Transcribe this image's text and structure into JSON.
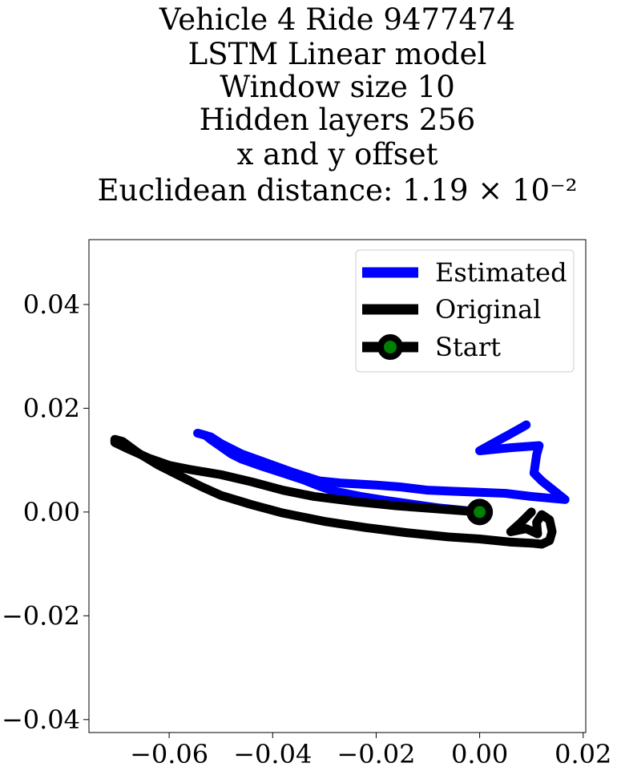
{
  "chart_data": {
    "type": "line",
    "title_lines": [
      "Vehicle 4 Ride 9477474",
      "LSTM Linear model",
      "Window size 10",
      "Hidden layers 256",
      "x and y offset",
      "Euclidean distance: 1.19 × 10⁻²"
    ],
    "xlim": [
      -0.0755,
      0.0205
    ],
    "ylim": [
      -0.0425,
      0.0525
    ],
    "x_ticks": [
      -0.06,
      -0.04,
      -0.02,
      0.0,
      0.02
    ],
    "x_tick_labels": [
      "−0.06",
      "−0.04",
      "−0.02",
      "0.00",
      "0.02"
    ],
    "y_ticks": [
      0.04,
      0.02,
      0.0,
      -0.02,
      -0.04
    ],
    "y_tick_labels": [
      "0.04",
      "0.02",
      "0.00",
      "−0.02",
      "−0.04"
    ],
    "legend_position": "top-right",
    "series": [
      {
        "name": "Estimated",
        "color": "#0000ff",
        "points": [
          [
            0.0,
            0.0
          ],
          [
            -0.004,
            0.0004
          ],
          [
            -0.008,
            0.0008
          ],
          [
            -0.013,
            0.0015
          ],
          [
            -0.018,
            0.0022
          ],
          [
            -0.023,
            0.003
          ],
          [
            -0.028,
            0.004
          ],
          [
            -0.031,
            0.005
          ],
          [
            -0.034,
            0.0062
          ],
          [
            -0.038,
            0.0075
          ],
          [
            -0.042,
            0.0088
          ],
          [
            -0.046,
            0.0102
          ],
          [
            -0.048,
            0.0112
          ],
          [
            -0.05,
            0.0126
          ],
          [
            -0.052,
            0.014
          ],
          [
            -0.053,
            0.0148
          ],
          [
            -0.0545,
            0.0152
          ],
          [
            -0.052,
            0.0145
          ],
          [
            -0.05,
            0.0132
          ],
          [
            -0.046,
            0.0112
          ],
          [
            -0.041,
            0.0094
          ],
          [
            -0.036,
            0.0076
          ],
          [
            -0.031,
            0.006
          ],
          [
            -0.027,
            0.0056
          ],
          [
            -0.02,
            0.0052
          ],
          [
            -0.015,
            0.0048
          ],
          [
            -0.01,
            0.0042
          ],
          [
            -0.005,
            0.004
          ],
          [
            0.0,
            0.0038
          ],
          [
            0.005,
            0.0036
          ],
          [
            0.01,
            0.003
          ],
          [
            0.0165,
            0.0024
          ],
          [
            0.012,
            0.006
          ],
          [
            0.0105,
            0.0075
          ],
          [
            0.011,
            0.011
          ],
          [
            0.0115,
            0.0128
          ],
          [
            0.006,
            0.0124
          ],
          [
            0.0,
            0.0118
          ],
          [
            0.004,
            0.014
          ],
          [
            0.008,
            0.0162
          ],
          [
            0.009,
            0.0168
          ]
        ]
      },
      {
        "name": "Original",
        "color": "#000000",
        "points": [
          [
            0.0,
            0.0
          ],
          [
            -0.008,
            0.0006
          ],
          [
            -0.016,
            0.0012
          ],
          [
            -0.024,
            0.002
          ],
          [
            -0.032,
            0.003
          ],
          [
            -0.038,
            0.0042
          ],
          [
            -0.044,
            0.0058
          ],
          [
            -0.05,
            0.0072
          ],
          [
            -0.056,
            0.0082
          ],
          [
            -0.06,
            0.009
          ],
          [
            -0.064,
            0.0104
          ],
          [
            -0.068,
            0.0122
          ],
          [
            -0.0705,
            0.0134
          ],
          [
            -0.0705,
            0.014
          ],
          [
            -0.069,
            0.0136
          ],
          [
            -0.066,
            0.0114
          ],
          [
            -0.062,
            0.009
          ],
          [
            -0.058,
            0.007
          ],
          [
            -0.054,
            0.005
          ],
          [
            -0.05,
            0.0032
          ],
          [
            -0.044,
            0.0014
          ],
          [
            -0.038,
            -0.0002
          ],
          [
            -0.03,
            -0.0018
          ],
          [
            -0.022,
            -0.003
          ],
          [
            -0.014,
            -0.004
          ],
          [
            -0.006,
            -0.0048
          ],
          [
            0.0,
            -0.0052
          ],
          [
            0.006,
            -0.0058
          ],
          [
            0.01,
            -0.006
          ],
          [
            0.012,
            -0.0062
          ],
          [
            0.0135,
            -0.0055
          ],
          [
            0.014,
            -0.0038
          ],
          [
            0.0135,
            -0.0015
          ],
          [
            0.012,
            -0.0005
          ],
          [
            0.011,
            -0.002
          ],
          [
            0.0112,
            -0.0042
          ],
          [
            0.009,
            -0.0032
          ],
          [
            0.006,
            -0.0038
          ],
          [
            0.008,
            -0.002
          ],
          [
            0.0095,
            -0.0005
          ],
          [
            0.01,
            -0.0
          ]
        ]
      }
    ],
    "start": {
      "name": "Start",
      "x": 0.0,
      "y": 0.0,
      "fill_color": "#008000",
      "edge_color": "#000000"
    }
  }
}
